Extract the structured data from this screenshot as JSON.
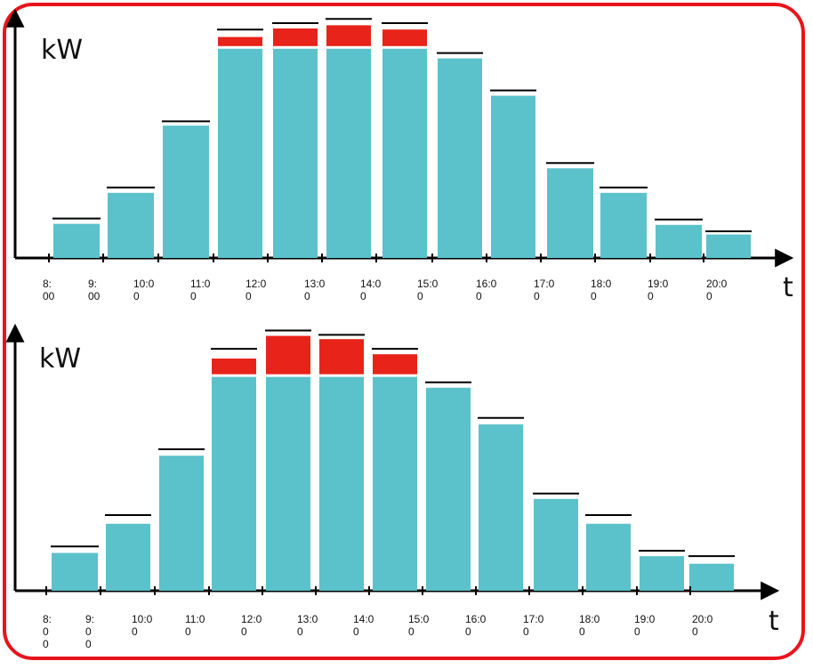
{
  "colors": {
    "base": "#5bc1cb",
    "excess": "#e8231a",
    "frame": "#e8141c",
    "axis": "#000000",
    "cap": "#000000"
  },
  "chart_data": [
    {
      "type": "bar",
      "stacked": true,
      "ylabel": "kW",
      "xlabel": "t",
      "x_tick_labels": [
        [
          "8:",
          "00"
        ],
        [
          "9:",
          "00"
        ],
        [
          "10:0",
          "0"
        ],
        [
          "11:0",
          "0"
        ],
        [
          "12:0",
          "0"
        ],
        [
          "13:0",
          "0"
        ],
        [
          "14:0",
          "0"
        ],
        [
          "15:0",
          "0"
        ],
        [
          "16:0",
          "0"
        ],
        [
          "17:0",
          "0"
        ],
        [
          "18:0",
          "0"
        ],
        [
          "19:0",
          "0"
        ],
        [
          "20:0",
          "0"
        ]
      ],
      "ylim": [
        0,
        230
      ],
      "limit": 196,
      "series": [
        {
          "values": [
            32,
            61,
            124,
            196,
            196,
            196,
            196,
            187,
            152,
            84,
            61,
            31,
            22
          ]
        },
        {
          "values": [
            0,
            0,
            0,
            11,
            19,
            22,
            18,
            0,
            0,
            0,
            0,
            0,
            0
          ]
        }
      ],
      "caps": [
        37,
        66,
        128,
        214,
        220,
        224,
        220,
        192,
        157,
        89,
        66,
        36,
        25
      ]
    },
    {
      "type": "bar",
      "stacked": true,
      "ylabel": "kW",
      "xlabel": "t",
      "x_tick_labels": [
        [
          "8:",
          "0",
          "0"
        ],
        [
          "9:",
          "0",
          "0"
        ],
        [
          "10:0",
          "0"
        ],
        [
          "11:0",
          "0"
        ],
        [
          "12:0",
          "0"
        ],
        [
          "13:0",
          "0"
        ],
        [
          "14:0",
          "0"
        ],
        [
          "15:0",
          "0"
        ],
        [
          "16:0",
          "0"
        ],
        [
          "17:0",
          "0"
        ],
        [
          "18:0",
          "0"
        ],
        [
          "19:0",
          "0"
        ],
        [
          "20:0",
          "0"
        ]
      ],
      "ylim": [
        0,
        290
      ],
      "limit": 198,
      "series": [
        {
          "values": [
            35,
            62,
            125,
            198,
            198,
            198,
            198,
            188,
            154,
            85,
            62,
            32,
            25
          ]
        },
        {
          "values": [
            0,
            0,
            0,
            17,
            38,
            35,
            21,
            0,
            0,
            0,
            0,
            0,
            0
          ]
        }
      ],
      "caps": [
        41,
        70,
        131,
        224,
        241,
        237,
        224,
        193,
        160,
        90,
        70,
        37,
        32
      ]
    }
  ]
}
